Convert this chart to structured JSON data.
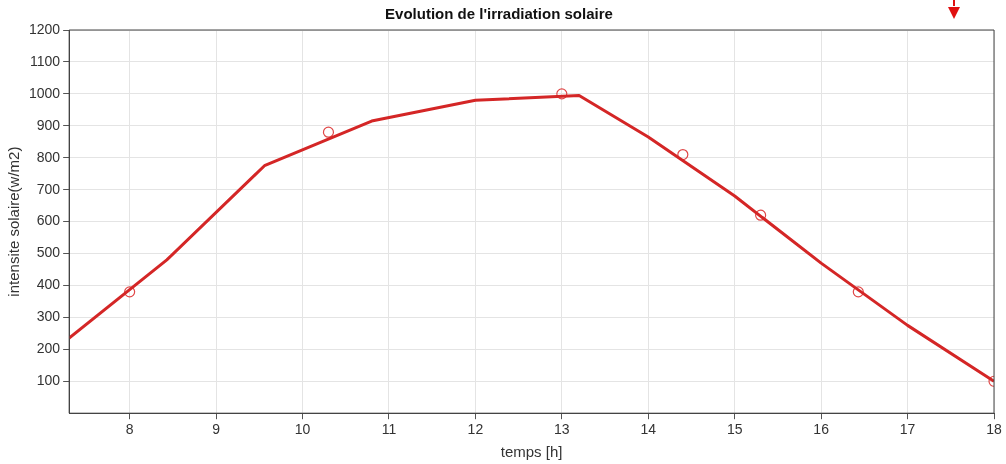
{
  "chart_data": {
    "type": "line",
    "title": "Evolution de l'irradiation solaire",
    "xlabel": "temps [h]",
    "ylabel": "intensite solaire(w/m2)",
    "xlim": [
      7.3,
      18
    ],
    "xticks": [
      8,
      9,
      10,
      11,
      12,
      13,
      14,
      15,
      16,
      17,
      18
    ],
    "ylim": [
      0,
      1200
    ],
    "yticks": [
      100,
      200,
      300,
      400,
      500,
      600,
      700,
      800,
      900,
      1000,
      1100,
      1200
    ],
    "grid": true,
    "series": [
      {
        "type": "line",
        "color": "#d42626",
        "marker": "none",
        "line_style": "solid",
        "x": [
          7.3,
          8.43,
          9.56,
          10.8,
          12.0,
          13.2,
          14,
          15,
          16,
          17.0,
          18
        ],
        "values": [
          235,
          480,
          775,
          915,
          980,
          995,
          865,
          680,
          470,
          275,
          100
        ]
      },
      {
        "type": "scatter",
        "color": "#e04848",
        "marker": "circle",
        "x": [
          8,
          10.3,
          13,
          14.4,
          15.3,
          16.43,
          18
        ],
        "values": [
          380,
          880,
          1000,
          810,
          620,
          380,
          100
        ]
      }
    ]
  }
}
